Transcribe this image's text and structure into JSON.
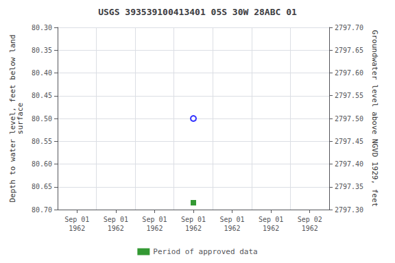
{
  "chart_data": {
    "type": "scatter",
    "title": "USGS 393539100413401 05S 30W 28ABC 01",
    "categories": [
      "Sep 01\n1962",
      "Sep 01\n1962",
      "Sep 01\n1962",
      "Sep 01\n1962",
      "Sep 01\n1962",
      "Sep 01\n1962",
      "Sep 02\n1962"
    ],
    "y_label": "Depth to water level, feet below land\nsurface",
    "y2_label": "Groundwater level above NGVD 1929, feet",
    "ylim": [
      80.7,
      80.3
    ],
    "yticks": [
      {
        "value": 80.3,
        "label": "80.30"
      },
      80.35,
      {
        "value": 80.4,
        "label": "80.40"
      },
      80.45,
      {
        "value": 80.5,
        "label": "80.50"
      },
      80.55,
      {
        "value": 80.6,
        "label": "80.60"
      },
      80.65,
      {
        "value": 80.7,
        "label": "80.70"
      }
    ],
    "y2lim": [
      2797.3,
      2797.7
    ],
    "y2ticks": [
      {
        "value": 2797.7,
        "label": "2797.70"
      },
      2797.65,
      {
        "value": 2797.6,
        "label": "2797.60"
      },
      2797.55,
      {
        "value": 2797.5,
        "label": "2797.50"
      },
      2797.45,
      {
        "value": 2797.4,
        "label": "2797.40"
      },
      2797.35,
      {
        "value": 2797.3,
        "label": "2797.30"
      }
    ],
    "series": [
      {
        "color": "blue",
        "marker": "open_circle",
        "values": [
          null,
          null,
          null,
          80.5,
          null,
          null,
          null
        ]
      },
      {
        "name": "Period of approved data",
        "color": "green",
        "marker": "square",
        "values": [
          null,
          null,
          null,
          80.685,
          null,
          null,
          null
        ]
      }
    ],
    "grid": true,
    "legend": "bottom"
  }
}
